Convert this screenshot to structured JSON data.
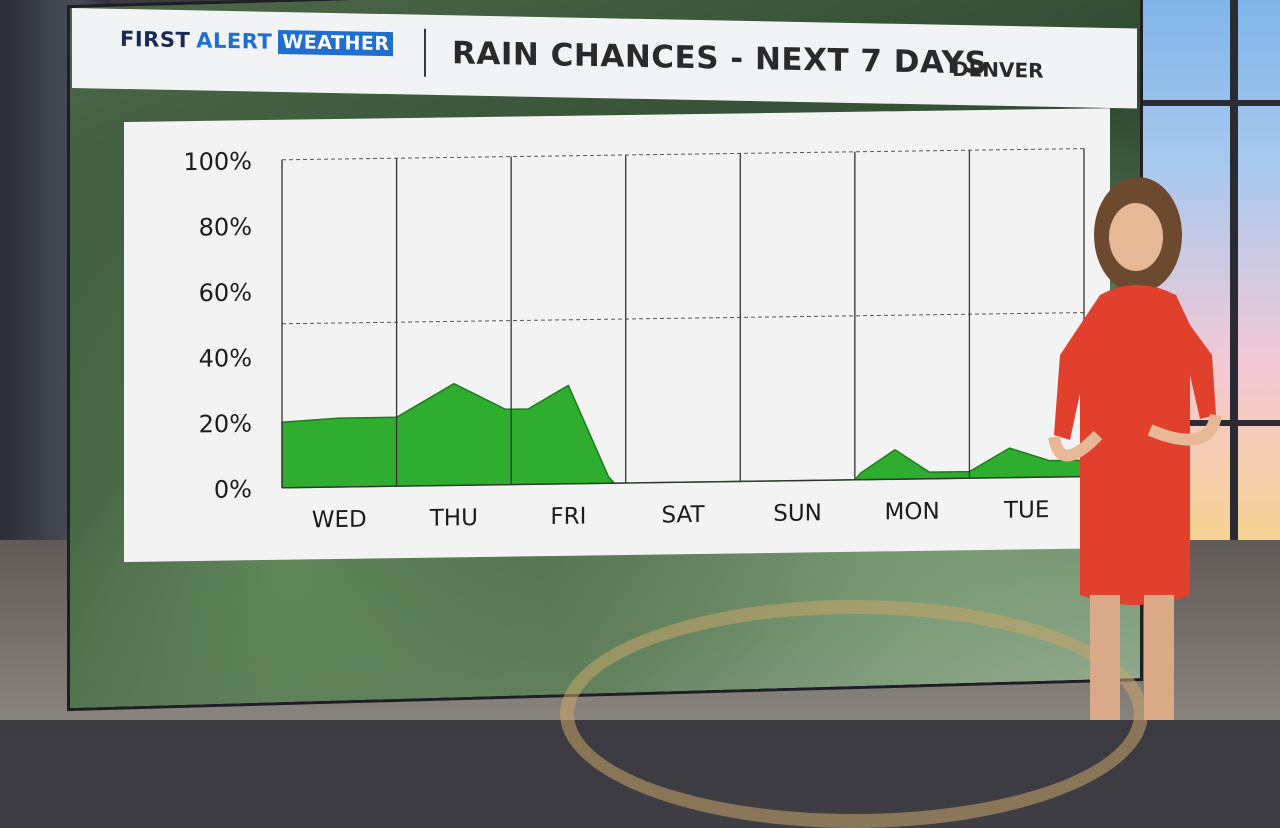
{
  "header": {
    "brand_first": "FIRST",
    "brand_alert": "ALERT",
    "brand_weather": "WEATHER",
    "title": "RAIN CHANCES - NEXT 7 DAYS",
    "location": "DENVER"
  },
  "colors": {
    "fill": "#2fad2f",
    "outline": "#1f7a1f",
    "brand_blue": "#1f6fd1",
    "panel": "#f3f3f4"
  },
  "chart_data": {
    "type": "area",
    "title": "RAIN CHANCES - NEXT 7 DAYS",
    "xlabel": "",
    "ylabel": "",
    "ylim": [
      0,
      100
    ],
    "yticks": [
      "100%",
      "80%",
      "60%",
      "40%",
      "20%",
      "0%"
    ],
    "ytick_values": [
      100,
      80,
      60,
      40,
      20,
      0
    ],
    "categories": [
      "WED",
      "THU",
      "FRI",
      "SAT",
      "SUN",
      "MON",
      "TUE"
    ],
    "gridlines": [
      50,
      100
    ],
    "series": [
      {
        "values": [
          20,
          30,
          30,
          0,
          0,
          8,
          9
        ]
      }
    ],
    "curve_points": [
      [
        0.0,
        20
      ],
      [
        0.5,
        21
      ],
      [
        1.0,
        21
      ],
      [
        1.5,
        31
      ],
      [
        1.95,
        23
      ],
      [
        2.15,
        23
      ],
      [
        2.5,
        30
      ],
      [
        2.85,
        2
      ],
      [
        2.9,
        0
      ],
      [
        3.0,
        0
      ],
      [
        5.0,
        0
      ],
      [
        5.05,
        2
      ],
      [
        5.35,
        9
      ],
      [
        5.65,
        2
      ],
      [
        6.0,
        2
      ],
      [
        6.35,
        9
      ],
      [
        6.7,
        5
      ],
      [
        7.0,
        5
      ]
    ]
  }
}
